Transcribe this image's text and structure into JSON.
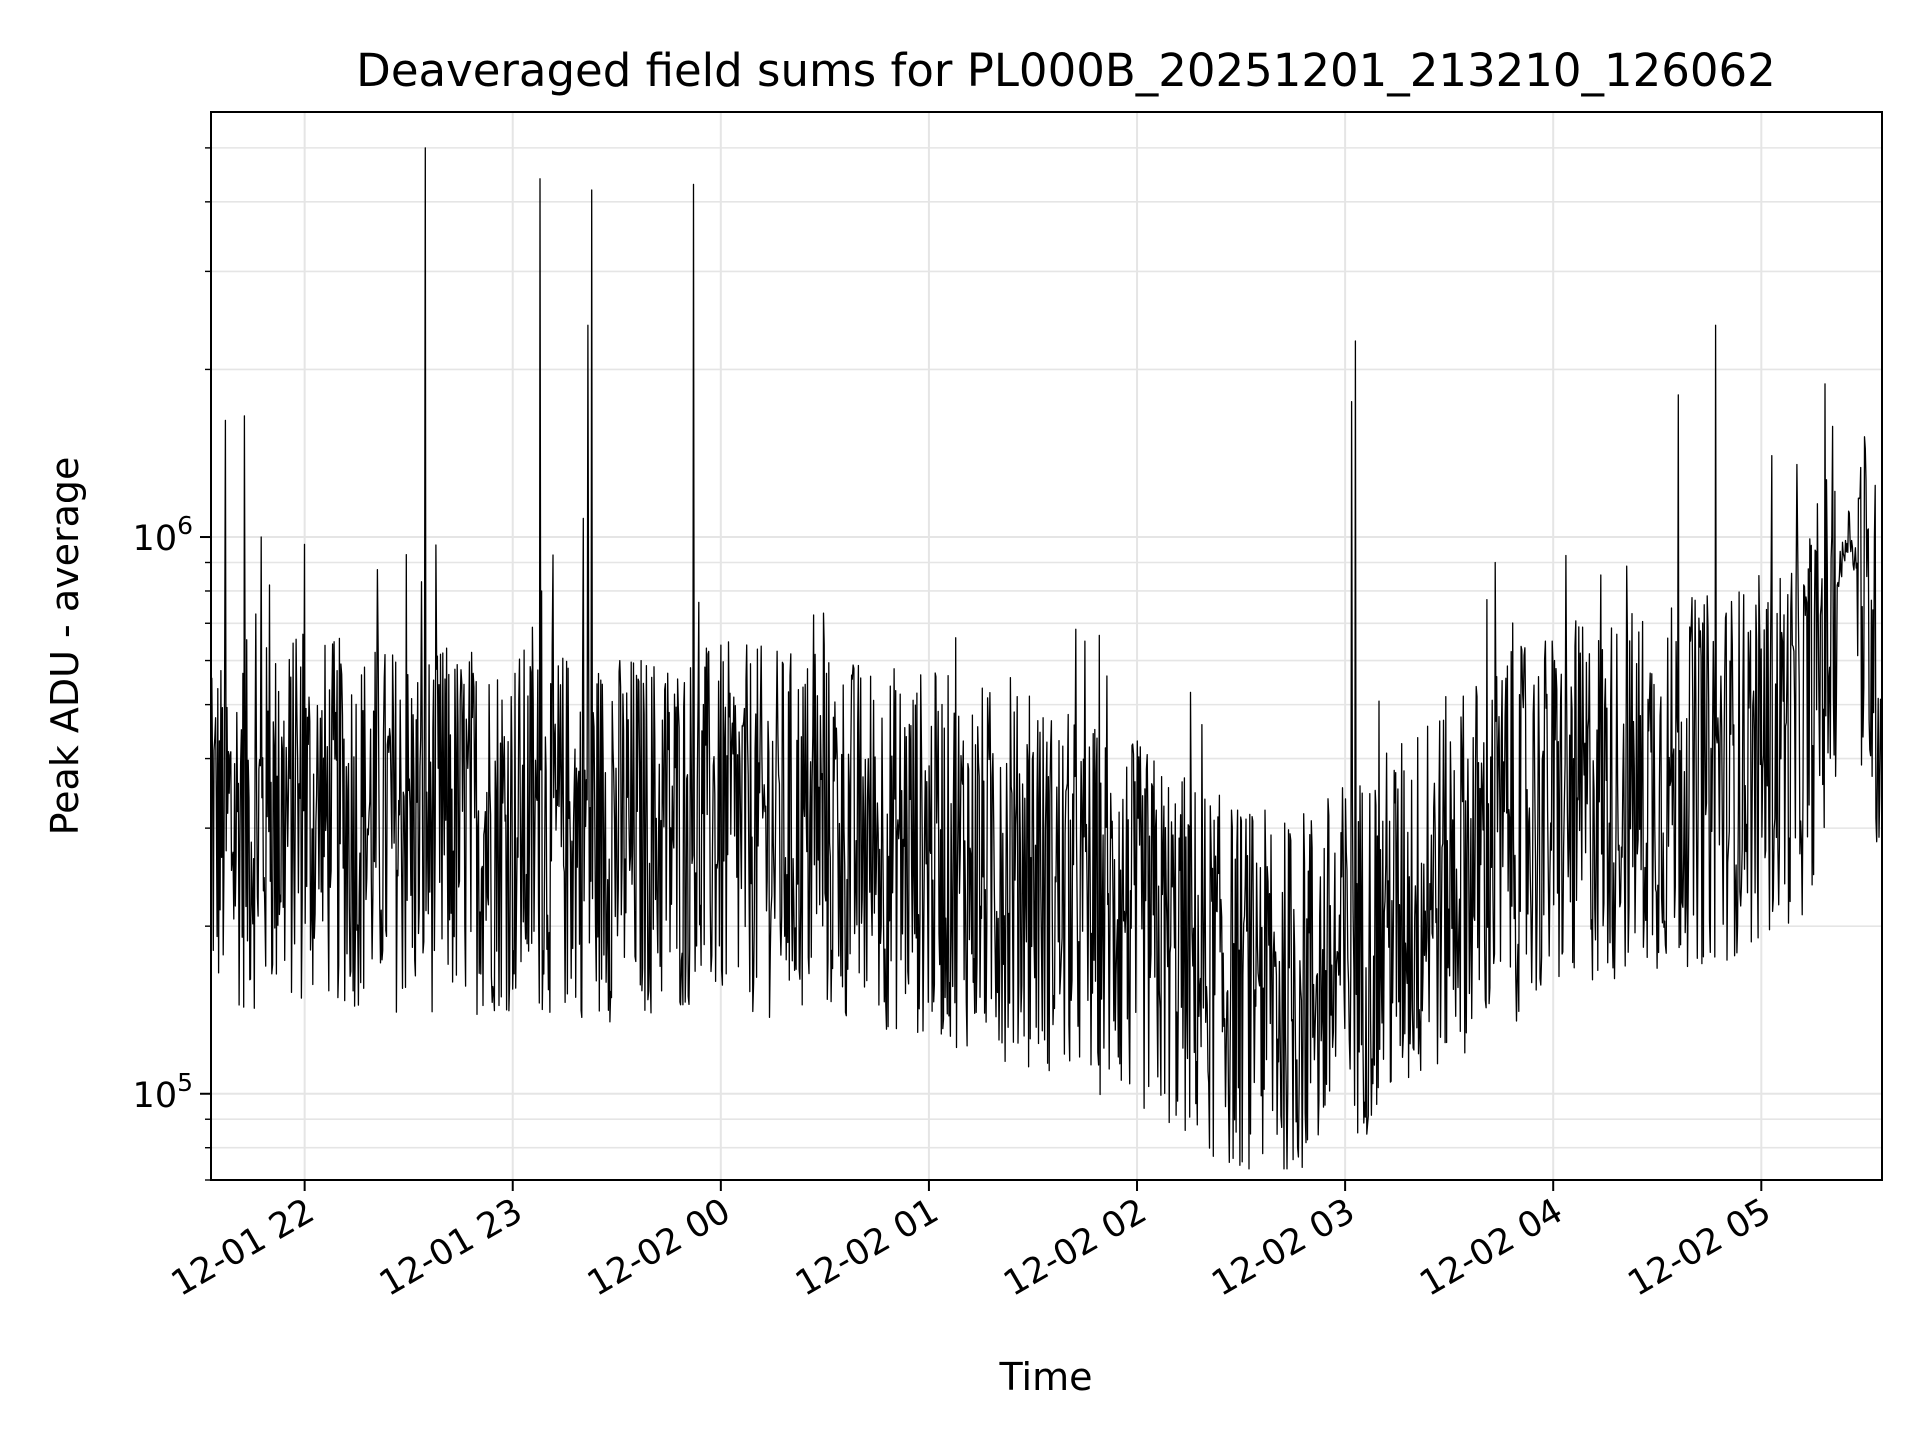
{
  "chart_data": {
    "type": "line",
    "title": "Deaveraged field sums for PL000B_20251201_213210_126062",
    "xlabel": "Time",
    "ylabel": "Peak ADU - average",
    "yscale": "log",
    "ylim": [
      70000,
      5800000
    ],
    "xlim_hours": [
      -2.45,
      5.58
    ],
    "grid": true,
    "line_color": "#000000",
    "grid_color": "#e5e5e5",
    "x_ticks": [
      {
        "hour": -2,
        "label": "12-01 22"
      },
      {
        "hour": -1,
        "label": "12-01 23"
      },
      {
        "hour": 0,
        "label": "12-02 00"
      },
      {
        "hour": 1,
        "label": "12-02 01"
      },
      {
        "hour": 2,
        "label": "12-02 02"
      },
      {
        "hour": 3,
        "label": "12-02 03"
      },
      {
        "hour": 4,
        "label": "12-02 04"
      },
      {
        "hour": 5,
        "label": "12-02 05"
      }
    ],
    "y_ticks": [
      {
        "value": 100000,
        "base": "10",
        "exp": "5"
      },
      {
        "value": 1000000,
        "base": "10",
        "exp": "6"
      }
    ],
    "series": [
      {
        "name": "Peak ADU - average",
        "baseline": {
          "hours": [
            -2.45,
            -2.0,
            -1.5,
            -1.0,
            -0.5,
            0.0,
            0.5,
            1.0,
            1.5,
            2.0,
            2.4,
            2.7,
            3.0,
            3.3,
            3.6,
            4.0,
            4.4,
            4.8,
            5.0,
            5.2,
            5.3,
            5.42,
            5.58
          ],
          "values": [
            300000,
            310000,
            300000,
            300000,
            290000,
            300000,
            290000,
            270000,
            240000,
            200000,
            160000,
            145000,
            170000,
            210000,
            260000,
            320000,
            350000,
            370000,
            400000,
            450000,
            600000,
            1050000,
            520000
          ]
        },
        "spikes": [
          {
            "hour": -2.38,
            "value": 1620000
          },
          {
            "hour": -2.29,
            "value": 1650000
          },
          {
            "hour": -2.21,
            "value": 1000000
          },
          {
            "hour": -2.17,
            "value": 820000
          },
          {
            "hour": -2.0,
            "value": 970000
          },
          {
            "hour": -1.51,
            "value": 930000
          },
          {
            "hour": -1.42,
            "value": 5000000
          },
          {
            "hour": -0.87,
            "value": 4400000
          },
          {
            "hour": -0.86,
            "value": 800000
          },
          {
            "hour": -0.66,
            "value": 1080000
          },
          {
            "hour": -0.64,
            "value": 2400000
          },
          {
            "hour": -0.62,
            "value": 4200000
          },
          {
            "hour": -0.13,
            "value": 4300000
          },
          {
            "hour": 1.75,
            "value": 650000
          },
          {
            "hour": 3.03,
            "value": 1750000
          },
          {
            "hour": 3.05,
            "value": 2250000
          },
          {
            "hour": 3.72,
            "value": 900000
          },
          {
            "hour": 4.6,
            "value": 1800000
          },
          {
            "hour": 4.78,
            "value": 2400000
          },
          {
            "hour": 5.05,
            "value": 1400000
          },
          {
            "hour": 5.17,
            "value": 1350000
          }
        ]
      }
    ]
  }
}
